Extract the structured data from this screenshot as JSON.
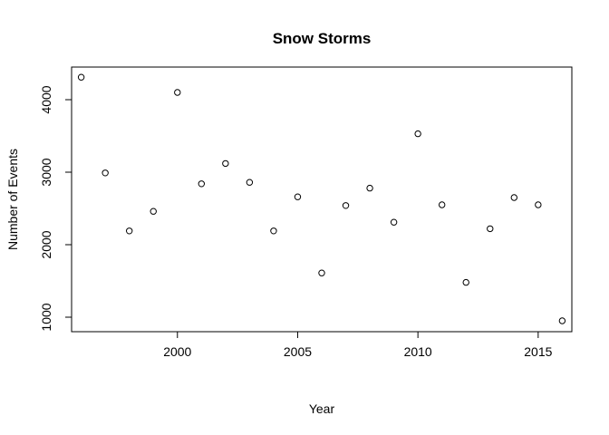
{
  "chart_data": {
    "type": "scatter",
    "title": "Snow Storms",
    "xlabel": "Year",
    "ylabel": "Number of Events",
    "xlim": [
      1995.6,
      2016.4
    ],
    "ylim": [
      800,
      4450
    ],
    "xticks": [
      2000,
      2005,
      2010,
      2015
    ],
    "yticks": [
      1000,
      2000,
      3000,
      4000
    ],
    "grid": false,
    "points": [
      {
        "x": 1996,
        "y": 4310
      },
      {
        "x": 1997,
        "y": 2990
      },
      {
        "x": 1998,
        "y": 2190
      },
      {
        "x": 1999,
        "y": 2460
      },
      {
        "x": 2000,
        "y": 4100
      },
      {
        "x": 2001,
        "y": 2840
      },
      {
        "x": 2002,
        "y": 3120
      },
      {
        "x": 2003,
        "y": 2860
      },
      {
        "x": 2004,
        "y": 2190
      },
      {
        "x": 2005,
        "y": 2660
      },
      {
        "x": 2006,
        "y": 1610
      },
      {
        "x": 2007,
        "y": 2540
      },
      {
        "x": 2008,
        "y": 2780
      },
      {
        "x": 2009,
        "y": 2310
      },
      {
        "x": 2010,
        "y": 3530
      },
      {
        "x": 2011,
        "y": 2550
      },
      {
        "x": 2012,
        "y": 1480
      },
      {
        "x": 2013,
        "y": 2220
      },
      {
        "x": 2014,
        "y": 2650
      },
      {
        "x": 2015,
        "y": 2550
      },
      {
        "x": 2016,
        "y": 950
      }
    ]
  }
}
